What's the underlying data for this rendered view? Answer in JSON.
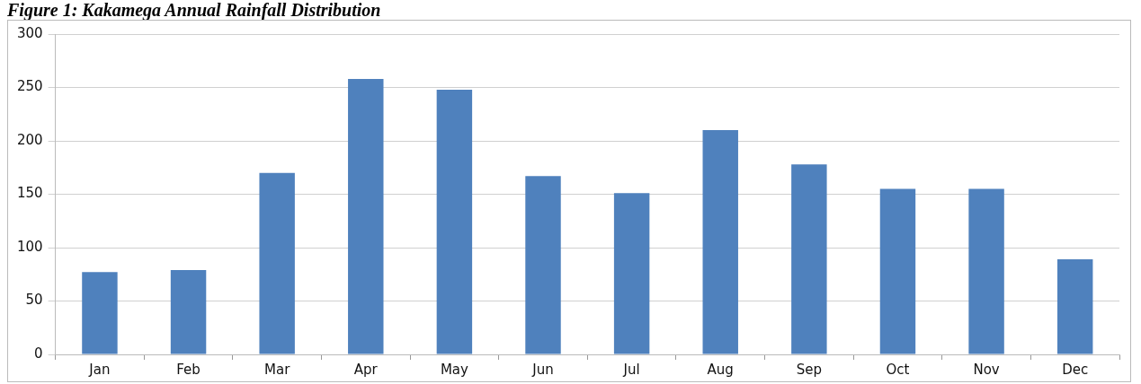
{
  "chart_data": {
    "type": "bar",
    "title": "Figure 1: Kakamega Annual Rainfall Distribution",
    "categories": [
      "Jan",
      "Feb",
      "Mar",
      "Apr",
      "May",
      "Jun",
      "Jul",
      "Aug",
      "Sep",
      "Oct",
      "Nov",
      "Dec"
    ],
    "values": [
      77,
      79,
      170,
      258,
      248,
      167,
      151,
      210,
      178,
      155,
      155,
      89
    ],
    "color": "#4f81bd",
    "ylim": [
      0,
      300
    ],
    "yticks": [
      0,
      50,
      100,
      150,
      200,
      250,
      300
    ],
    "grid": "y",
    "legend": false
  }
}
